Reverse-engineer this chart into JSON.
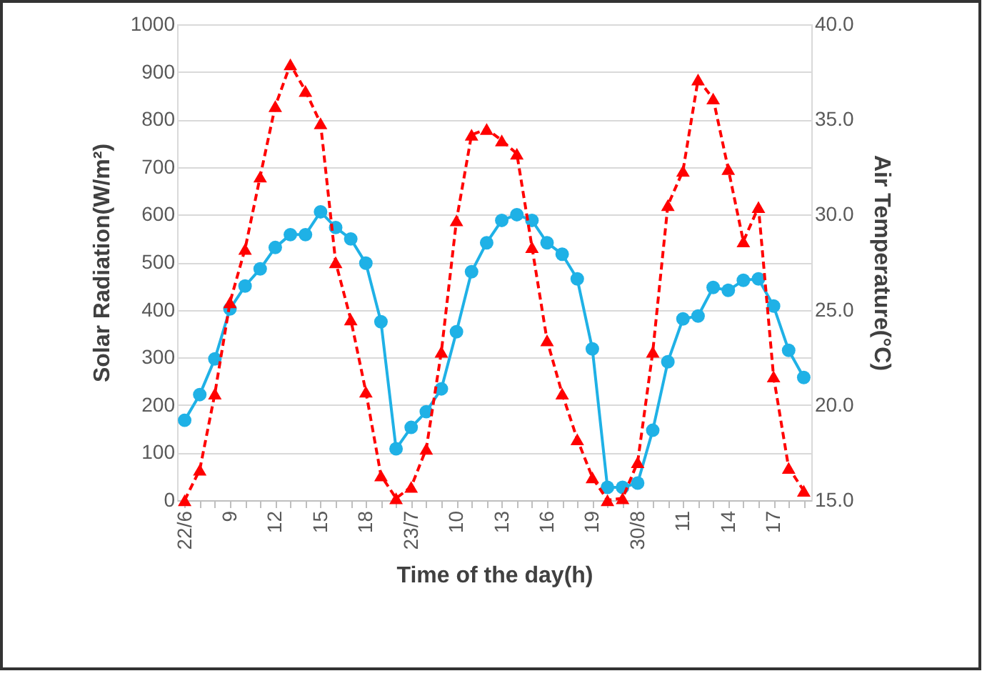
{
  "chart_data": {
    "type": "line",
    "xlabel": "Time of  the day(h)",
    "ylabel": "Solar Radiation(W/m²)",
    "y2label": "Air Temperature(°C)",
    "categories": [
      "22/6",
      null,
      null,
      "9",
      null,
      null,
      "12",
      null,
      null,
      "15",
      null,
      null,
      "18",
      null,
      null,
      "23/7",
      null,
      null,
      "10",
      null,
      null,
      "13",
      null,
      null,
      "16",
      null,
      null,
      "19",
      null,
      null,
      "30/8",
      null,
      null,
      "11",
      null,
      null,
      "14",
      null,
      null,
      "17",
      null,
      null
    ],
    "series": [
      {
        "color": "#1fb1e6",
        "marker": "circle",
        "line_style": "solid",
        "values": [
          168,
          222,
          297,
          402,
          450,
          486,
          531,
          558,
          558,
          606,
          573,
          549,
          498,
          375,
          108,
          153,
          186,
          234,
          354,
          480,
          541,
          588,
          600,
          588,
          541,
          517,
          465,
          318,
          27,
          27,
          36,
          147,
          291,
          381,
          387,
          447,
          441,
          462,
          465,
          408,
          315,
          258
        ]
      },
      {
        "color": "#ff0000",
        "marker": "triangle",
        "line_style": "dashed",
        "axis": "y2",
        "values": [
          15.0,
          16.6,
          20.6,
          25.4,
          28.2,
          32.0,
          35.7,
          37.9,
          36.5,
          34.8,
          27.5,
          24.5,
          20.7,
          16.3,
          15.1,
          15.7,
          17.7,
          22.8,
          29.7,
          34.2,
          34.5,
          33.9,
          33.2,
          28.3,
          23.4,
          20.6,
          18.2,
          16.2,
          15.0,
          15.1,
          17.0,
          22.8,
          30.5,
          32.3,
          37.1,
          36.1,
          32.4,
          28.6,
          30.4,
          21.5,
          16.7,
          15.5
        ]
      }
    ],
    "ylim": [
      0,
      1000
    ],
    "yticks": [
      0,
      100,
      200,
      300,
      400,
      500,
      600,
      700,
      800,
      900,
      1000
    ],
    "y2lim": [
      15,
      40
    ],
    "y2ticks": [
      {
        "value": 15,
        "label": "15.0"
      },
      {
        "value": 20,
        "label": "20.0"
      },
      {
        "value": 25,
        "label": "25.0"
      },
      {
        "value": 30,
        "label": "30.0"
      },
      {
        "value": 35,
        "label": "35.0"
      },
      {
        "value": 40,
        "label": "40.0"
      }
    ],
    "grid": "y"
  }
}
